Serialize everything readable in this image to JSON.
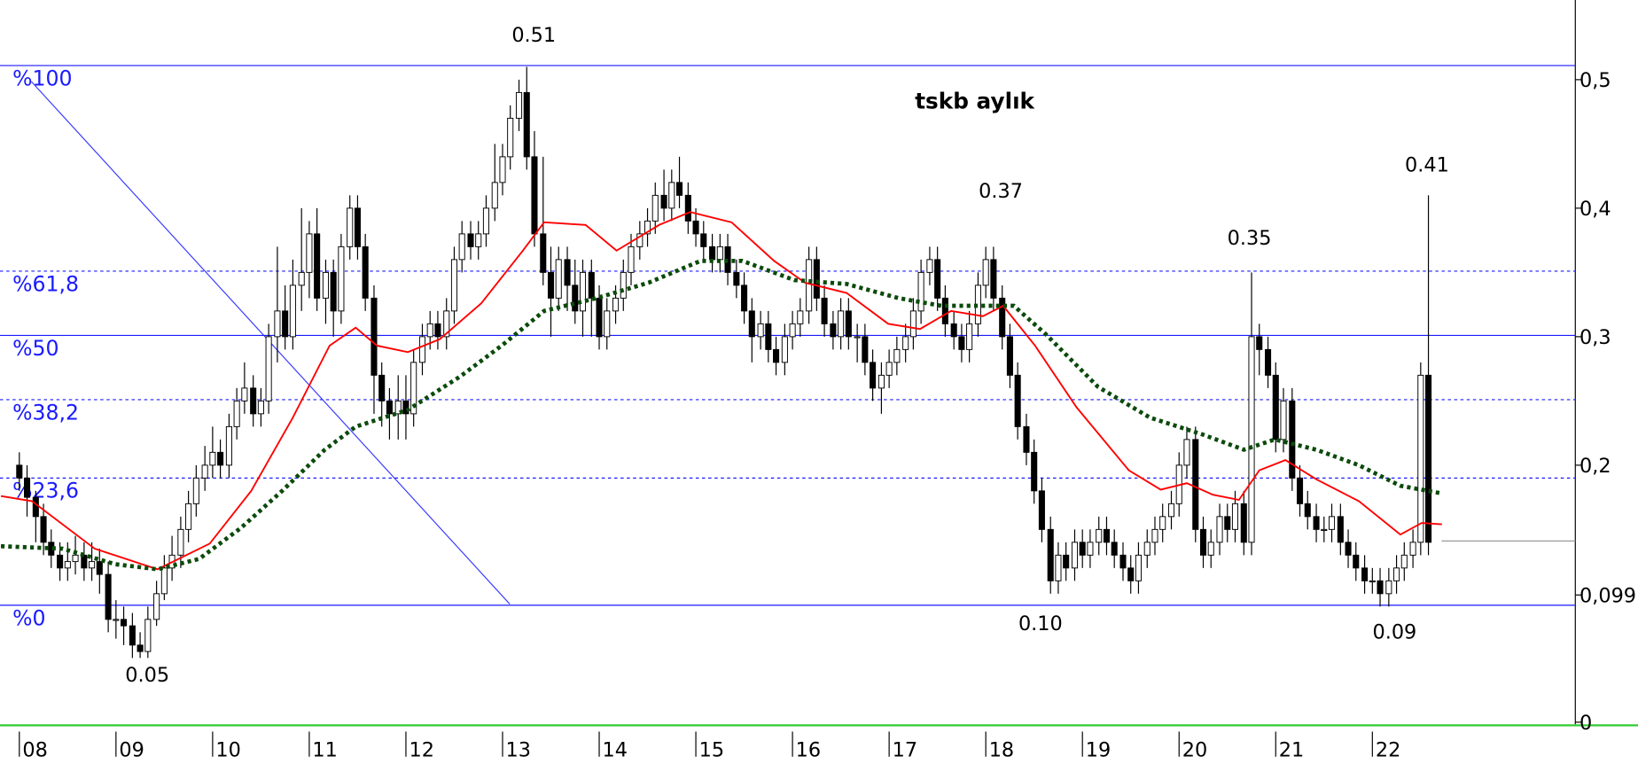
{
  "chart_data": {
    "type": "candlestick",
    "title": "tskb aylık",
    "xlim": [
      2007.8,
      2024.1
    ],
    "ylim": [
      0,
      0.562
    ],
    "xticks": [
      {
        "value": 2008,
        "label": "08"
      },
      {
        "value": 2009,
        "label": "09"
      },
      {
        "value": 2010,
        "label": "10"
      },
      {
        "value": 2011,
        "label": "11"
      },
      {
        "value": 2012,
        "label": "12"
      },
      {
        "value": 2013,
        "label": "13"
      },
      {
        "value": 2014,
        "label": "14"
      },
      {
        "value": 2015,
        "label": "15"
      },
      {
        "value": 2016,
        "label": "16"
      },
      {
        "value": 2017,
        "label": "17"
      },
      {
        "value": 2018,
        "label": "18"
      },
      {
        "value": 2019,
        "label": "19"
      },
      {
        "value": 2020,
        "label": "20"
      },
      {
        "value": 2021,
        "label": "21"
      },
      {
        "value": 2022,
        "label": "22"
      }
    ],
    "yticks": [
      {
        "value": 0.5,
        "label": "0,5"
      },
      {
        "value": 0.4,
        "label": "0,4"
      },
      {
        "value": 0.3,
        "label": "0,3"
      },
      {
        "value": 0.2,
        "label": "0,2"
      },
      {
        "value": 0.099,
        "label": "0,099"
      },
      0
    ],
    "fib_levels": [
      {
        "value": 0.511,
        "label": "%100",
        "style": "solid"
      },
      {
        "value": 0.351,
        "label": "%61,8",
        "style": "dashed"
      },
      {
        "value": 0.301,
        "label": "%50",
        "style": "solid"
      },
      {
        "value": 0.251,
        "label": "%38,2",
        "style": "dashed"
      },
      {
        "value": 0.19,
        "label": "%23,6",
        "style": "dashed"
      },
      {
        "value": 0.091,
        "label": "%0",
        "style": "solid"
      }
    ],
    "fib_color": "#1a1aff",
    "annotations": [
      "0.51",
      "0.05",
      "0.37",
      "0.10",
      "0.35",
      "0.41",
      "0.09"
    ],
    "last_value_line": 0.141,
    "x": [
      2008.0,
      2008.08,
      2008.17,
      2008.25,
      2008.33,
      2008.42,
      2008.5,
      2008.58,
      2008.67,
      2008.75,
      2008.83,
      2008.92,
      2009.0,
      2009.08,
      2009.17,
      2009.25,
      2009.33,
      2009.42,
      2009.5,
      2009.58,
      2009.67,
      2009.75,
      2009.83,
      2009.92,
      2010.0,
      2010.08,
      2010.17,
      2010.25,
      2010.33,
      2010.42,
      2010.5,
      2010.58,
      2010.67,
      2010.75,
      2010.83,
      2010.92,
      2011.0,
      2011.08,
      2011.17,
      2011.25,
      2011.33,
      2011.42,
      2011.5,
      2011.58,
      2011.67,
      2011.75,
      2011.83,
      2011.92,
      2012.0,
      2012.08,
      2012.17,
      2012.25,
      2012.33,
      2012.42,
      2012.5,
      2012.58,
      2012.67,
      2012.75,
      2012.83,
      2012.92,
      2013.0,
      2013.08,
      2013.17,
      2013.25,
      2013.33,
      2013.42,
      2013.5,
      2013.58,
      2013.67,
      2013.75,
      2013.83,
      2013.92,
      2014.0,
      2014.08,
      2014.17,
      2014.25,
      2014.33,
      2014.42,
      2014.5,
      2014.58,
      2014.67,
      2014.75,
      2014.83,
      2014.92,
      2015.0,
      2015.08,
      2015.17,
      2015.25,
      2015.33,
      2015.42,
      2015.5,
      2015.58,
      2015.67,
      2015.75,
      2015.83,
      2015.92,
      2016.0,
      2016.08,
      2016.17,
      2016.25,
      2016.33,
      2016.42,
      2016.5,
      2016.58,
      2016.67,
      2016.75,
      2016.83,
      2016.92,
      2017.0,
      2017.08,
      2017.17,
      2017.25,
      2017.33,
      2017.42,
      2017.5,
      2017.58,
      2017.67,
      2017.75,
      2017.83,
      2017.92,
      2018.0,
      2018.08,
      2018.17,
      2018.25,
      2018.33,
      2018.42,
      2018.5,
      2018.58,
      2018.67,
      2018.75,
      2018.83,
      2018.92,
      2019.0,
      2019.08,
      2019.17,
      2019.25,
      2019.33,
      2019.42,
      2019.5,
      2019.58,
      2019.67,
      2019.75,
      2019.83,
      2019.92,
      2020.0,
      2020.08,
      2020.17,
      2020.25,
      2020.33,
      2020.42,
      2020.5,
      2020.58,
      2020.67,
      2020.75,
      2020.83,
      2020.92,
      2021.0,
      2021.08,
      2021.17,
      2021.25,
      2021.33,
      2021.42,
      2021.5,
      2021.58,
      2021.67,
      2021.75,
      2021.83,
      2021.92,
      2022.0,
      2022.08,
      2022.17,
      2022.25,
      2022.33,
      2022.42,
      2022.5,
      2022.58
    ],
    "open": [
      0.2,
      0.19,
      0.175,
      0.16,
      0.14,
      0.13,
      0.12,
      0.125,
      0.13,
      0.12,
      0.125,
      0.115,
      0.08,
      0.08,
      0.075,
      0.06,
      0.055,
      0.08,
      0.1,
      0.12,
      0.13,
      0.15,
      0.17,
      0.19,
      0.2,
      0.21,
      0.2,
      0.23,
      0.25,
      0.26,
      0.24,
      0.25,
      0.3,
      0.32,
      0.3,
      0.34,
      0.35,
      0.38,
      0.33,
      0.35,
      0.32,
      0.37,
      0.4,
      0.37,
      0.33,
      0.27,
      0.25,
      0.24,
      0.25,
      0.24,
      0.28,
      0.3,
      0.31,
      0.3,
      0.32,
      0.36,
      0.38,
      0.37,
      0.38,
      0.4,
      0.42,
      0.44,
      0.47,
      0.49,
      0.44,
      0.38,
      0.35,
      0.33,
      0.36,
      0.34,
      0.32,
      0.35,
      0.33,
      0.3,
      0.32,
      0.33,
      0.35,
      0.37,
      0.38,
      0.39,
      0.41,
      0.4,
      0.42,
      0.41,
      0.39,
      0.38,
      0.37,
      0.36,
      0.37,
      0.35,
      0.34,
      0.32,
      0.3,
      0.31,
      0.29,
      0.28,
      0.3,
      0.31,
      0.32,
      0.36,
      0.33,
      0.31,
      0.3,
      0.32,
      0.3,
      0.3,
      0.28,
      0.26,
      0.27,
      0.28,
      0.29,
      0.3,
      0.32,
      0.35,
      0.36,
      0.33,
      0.31,
      0.3,
      0.29,
      0.31,
      0.34,
      0.36,
      0.33,
      0.3,
      0.27,
      0.23,
      0.21,
      0.18,
      0.15,
      0.11,
      0.13,
      0.12,
      0.14,
      0.13,
      0.14,
      0.15,
      0.14,
      0.13,
      0.12,
      0.11,
      0.13,
      0.14,
      0.15,
      0.16,
      0.17,
      0.2,
      0.22,
      0.15,
      0.13,
      0.14,
      0.16,
      0.15,
      0.17,
      0.14,
      0.3,
      0.29,
      0.27,
      0.22,
      0.25,
      0.19,
      0.17,
      0.16,
      0.15,
      0.15,
      0.16,
      0.14,
      0.13,
      0.12,
      0.11,
      0.11,
      0.1,
      0.11,
      0.12,
      0.13,
      0.14,
      0.27
    ],
    "high": [
      0.21,
      0.2,
      0.18,
      0.17,
      0.15,
      0.14,
      0.14,
      0.145,
      0.14,
      0.14,
      0.135,
      0.125,
      0.095,
      0.09,
      0.085,
      0.07,
      0.09,
      0.11,
      0.13,
      0.145,
      0.16,
      0.18,
      0.2,
      0.215,
      0.23,
      0.22,
      0.24,
      0.26,
      0.28,
      0.27,
      0.26,
      0.31,
      0.37,
      0.34,
      0.36,
      0.4,
      0.39,
      0.4,
      0.36,
      0.36,
      0.38,
      0.41,
      0.41,
      0.38,
      0.34,
      0.28,
      0.26,
      0.27,
      0.27,
      0.29,
      0.31,
      0.32,
      0.32,
      0.33,
      0.37,
      0.39,
      0.39,
      0.39,
      0.41,
      0.45,
      0.45,
      0.48,
      0.5,
      0.51,
      0.46,
      0.44,
      0.37,
      0.37,
      0.37,
      0.36,
      0.36,
      0.36,
      0.34,
      0.33,
      0.34,
      0.36,
      0.38,
      0.39,
      0.4,
      0.42,
      0.43,
      0.43,
      0.44,
      0.42,
      0.4,
      0.39,
      0.38,
      0.38,
      0.38,
      0.36,
      0.35,
      0.33,
      0.32,
      0.32,
      0.3,
      0.31,
      0.32,
      0.33,
      0.37,
      0.37,
      0.34,
      0.32,
      0.33,
      0.33,
      0.31,
      0.31,
      0.29,
      0.28,
      0.29,
      0.3,
      0.31,
      0.33,
      0.36,
      0.37,
      0.37,
      0.34,
      0.32,
      0.31,
      0.32,
      0.35,
      0.37,
      0.37,
      0.34,
      0.31,
      0.28,
      0.24,
      0.22,
      0.19,
      0.16,
      0.14,
      0.14,
      0.15,
      0.15,
      0.15,
      0.16,
      0.16,
      0.15,
      0.14,
      0.13,
      0.14,
      0.15,
      0.16,
      0.17,
      0.18,
      0.21,
      0.23,
      0.23,
      0.16,
      0.15,
      0.17,
      0.17,
      0.18,
      0.18,
      0.35,
      0.31,
      0.3,
      0.28,
      0.26,
      0.26,
      0.2,
      0.18,
      0.17,
      0.16,
      0.17,
      0.17,
      0.15,
      0.14,
      0.13,
      0.12,
      0.12,
      0.12,
      0.13,
      0.14,
      0.15,
      0.28,
      0.41
    ],
    "low": [
      0.18,
      0.16,
      0.14,
      0.13,
      0.12,
      0.11,
      0.11,
      0.115,
      0.11,
      0.11,
      0.1,
      0.07,
      0.065,
      0.06,
      0.05,
      0.05,
      0.05,
      0.075,
      0.095,
      0.11,
      0.12,
      0.14,
      0.16,
      0.18,
      0.19,
      0.19,
      0.19,
      0.22,
      0.24,
      0.23,
      0.23,
      0.24,
      0.28,
      0.29,
      0.29,
      0.32,
      0.33,
      0.32,
      0.31,
      0.3,
      0.31,
      0.36,
      0.36,
      0.32,
      0.24,
      0.23,
      0.22,
      0.22,
      0.22,
      0.23,
      0.27,
      0.29,
      0.29,
      0.29,
      0.31,
      0.35,
      0.36,
      0.36,
      0.37,
      0.39,
      0.41,
      0.43,
      0.46,
      0.43,
      0.37,
      0.34,
      0.3,
      0.32,
      0.32,
      0.31,
      0.3,
      0.3,
      0.29,
      0.29,
      0.31,
      0.32,
      0.34,
      0.36,
      0.37,
      0.38,
      0.39,
      0.39,
      0.4,
      0.38,
      0.37,
      0.36,
      0.35,
      0.35,
      0.34,
      0.33,
      0.31,
      0.28,
      0.29,
      0.28,
      0.27,
      0.27,
      0.29,
      0.3,
      0.31,
      0.32,
      0.3,
      0.29,
      0.29,
      0.29,
      0.28,
      0.27,
      0.25,
      0.24,
      0.26,
      0.27,
      0.28,
      0.29,
      0.31,
      0.34,
      0.32,
      0.3,
      0.29,
      0.28,
      0.28,
      0.3,
      0.33,
      0.32,
      0.29,
      0.26,
      0.22,
      0.2,
      0.17,
      0.14,
      0.1,
      0.1,
      0.11,
      0.11,
      0.12,
      0.12,
      0.13,
      0.13,
      0.12,
      0.11,
      0.1,
      0.1,
      0.12,
      0.13,
      0.14,
      0.15,
      0.16,
      0.19,
      0.14,
      0.12,
      0.12,
      0.13,
      0.14,
      0.14,
      0.13,
      0.13,
      0.27,
      0.26,
      0.21,
      0.21,
      0.18,
      0.16,
      0.15,
      0.14,
      0.14,
      0.14,
      0.13,
      0.12,
      0.11,
      0.1,
      0.1,
      0.09,
      0.09,
      0.1,
      0.11,
      0.12,
      0.13,
      0.13
    ],
    "close": [
      0.19,
      0.175,
      0.16,
      0.14,
      0.13,
      0.12,
      0.125,
      0.13,
      0.12,
      0.125,
      0.115,
      0.08,
      0.08,
      0.075,
      0.06,
      0.055,
      0.08,
      0.1,
      0.12,
      0.13,
      0.15,
      0.17,
      0.19,
      0.2,
      0.21,
      0.2,
      0.23,
      0.25,
      0.26,
      0.24,
      0.25,
      0.3,
      0.32,
      0.3,
      0.34,
      0.35,
      0.38,
      0.33,
      0.35,
      0.32,
      0.37,
      0.4,
      0.37,
      0.33,
      0.27,
      0.25,
      0.24,
      0.25,
      0.24,
      0.28,
      0.3,
      0.31,
      0.3,
      0.32,
      0.36,
      0.38,
      0.37,
      0.38,
      0.4,
      0.42,
      0.44,
      0.47,
      0.49,
      0.44,
      0.38,
      0.35,
      0.33,
      0.36,
      0.34,
      0.32,
      0.35,
      0.33,
      0.3,
      0.32,
      0.33,
      0.35,
      0.37,
      0.38,
      0.39,
      0.41,
      0.4,
      0.42,
      0.41,
      0.39,
      0.38,
      0.37,
      0.36,
      0.37,
      0.35,
      0.34,
      0.32,
      0.3,
      0.31,
      0.29,
      0.28,
      0.3,
      0.31,
      0.32,
      0.36,
      0.33,
      0.31,
      0.3,
      0.32,
      0.3,
      0.3,
      0.28,
      0.26,
      0.27,
      0.28,
      0.29,
      0.3,
      0.32,
      0.35,
      0.36,
      0.33,
      0.31,
      0.3,
      0.29,
      0.31,
      0.34,
      0.36,
      0.33,
      0.3,
      0.27,
      0.23,
      0.21,
      0.18,
      0.15,
      0.11,
      0.13,
      0.12,
      0.14,
      0.13,
      0.14,
      0.15,
      0.14,
      0.13,
      0.12,
      0.11,
      0.13,
      0.14,
      0.15,
      0.16,
      0.17,
      0.2,
      0.22,
      0.15,
      0.13,
      0.14,
      0.16,
      0.15,
      0.17,
      0.14,
      0.3,
      0.29,
      0.27,
      0.22,
      0.25,
      0.19,
      0.17,
      0.16,
      0.15,
      0.15,
      0.16,
      0.14,
      0.13,
      0.12,
      0.11,
      0.11,
      0.1,
      0.11,
      0.12,
      0.13,
      0.14,
      0.27,
      0.14
    ],
    "ma_lines": [
      {
        "color": "#ff0000",
        "style": "solid",
        "x": [
          2007.81,
          2008.13,
          2008.78,
          2009.43,
          2009.97,
          2010.4,
          2010.83,
          2011.21,
          2011.48,
          2011.7,
          2012.02,
          2012.35,
          2012.78,
          2013.21,
          2013.43,
          2013.86,
          2014.18,
          2014.62,
          2014.94,
          2015.37,
          2015.81,
          2016.13,
          2016.56,
          2016.99,
          2017.32,
          2017.64,
          2017.97,
          2018.18,
          2018.51,
          2018.94,
          2019.48,
          2019.81,
          2020.08,
          2020.35,
          2020.62,
          2020.83,
          2021.1,
          2021.42,
          2021.86,
          2022.29,
          2022.51,
          2022.72
        ],
        "values": [
          0.176,
          0.172,
          0.135,
          0.119,
          0.139,
          0.18,
          0.237,
          0.293,
          0.307,
          0.293,
          0.288,
          0.298,
          0.326,
          0.367,
          0.389,
          0.387,
          0.367,
          0.387,
          0.397,
          0.389,
          0.359,
          0.342,
          0.334,
          0.31,
          0.306,
          0.32,
          0.316,
          0.324,
          0.293,
          0.245,
          0.196,
          0.181,
          0.186,
          0.177,
          0.173,
          0.196,
          0.204,
          0.189,
          0.172,
          0.146,
          0.155,
          0.154
        ]
      },
      {
        "color": "#0b4a0b",
        "style": "dotted",
        "x": [
          2007.81,
          2008.45,
          2008.99,
          2009.43,
          2009.86,
          2010.29,
          2010.72,
          2011.16,
          2011.48,
          2012.02,
          2012.56,
          2012.99,
          2013.43,
          2013.97,
          2014.51,
          2015.05,
          2015.48,
          2016.02,
          2016.56,
          2017.1,
          2017.54,
          2017.97,
          2018.29,
          2018.62,
          2019.16,
          2019.7,
          2020.24,
          2020.67,
          2020.99,
          2021.42,
          2021.86,
          2022.29,
          2022.72
        ],
        "values": [
          0.137,
          0.135,
          0.123,
          0.119,
          0.127,
          0.151,
          0.18,
          0.212,
          0.23,
          0.243,
          0.269,
          0.293,
          0.32,
          0.33,
          0.342,
          0.359,
          0.359,
          0.344,
          0.341,
          0.33,
          0.324,
          0.324,
          0.324,
          0.302,
          0.261,
          0.237,
          0.224,
          0.212,
          0.22,
          0.212,
          0.2,
          0.184,
          0.178
        ]
      }
    ]
  }
}
